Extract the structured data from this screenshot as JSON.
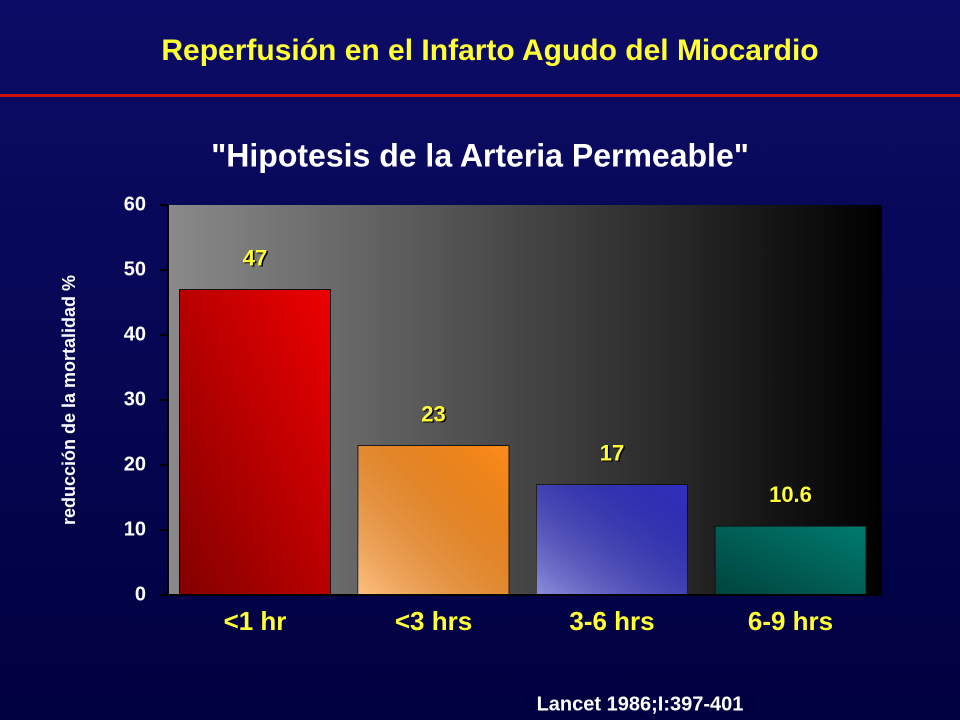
{
  "slide_title": "Reperfusión en el Infarto Agudo del Miocardio",
  "chart_data": {
    "type": "bar",
    "title": "\"Hipotesis de la Arteria Permeable\"",
    "y_label": "reducción de la mortalidad %",
    "categories": [
      "<1 hr",
      "<3 hrs",
      "3-6 hrs",
      "6-9 hrs"
    ],
    "values": [
      47,
      23,
      17,
      10.6
    ],
    "colors": [
      "#ee0000",
      "#ff8c1a",
      "#3030c0",
      "#007a6e"
    ],
    "ylim": [
      0,
      60
    ],
    "yticks": [
      0,
      10,
      20,
      30,
      40,
      50,
      60
    ]
  },
  "source": "Lancet 1986;I:397-401"
}
